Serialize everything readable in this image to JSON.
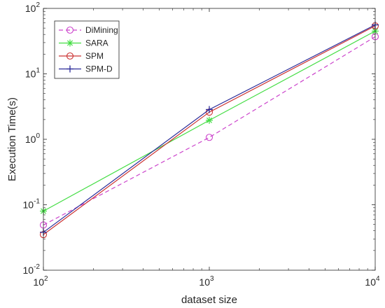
{
  "chart_data": {
    "type": "line",
    "title": "",
    "xlabel": "dataset size",
    "ylabel": "Execution Time(s)",
    "x_scale": "log",
    "y_scale": "log",
    "xlim": [
      100,
      10000
    ],
    "ylim": [
      0.01,
      100
    ],
    "x_ticks": [
      {
        "value": 100,
        "base": "10",
        "exp": "2"
      },
      {
        "value": 1000,
        "base": "10",
        "exp": "3"
      },
      {
        "value": 10000,
        "base": "10",
        "exp": "4"
      }
    ],
    "y_ticks": [
      {
        "value": 0.01,
        "base": "10",
        "exp": "-2"
      },
      {
        "value": 0.1,
        "base": "10",
        "exp": "-1"
      },
      {
        "value": 1,
        "base": "10",
        "exp": "0"
      },
      {
        "value": 10,
        "base": "10",
        "exp": "1"
      },
      {
        "value": 100,
        "base": "10",
        "exp": "2"
      }
    ],
    "x": [
      100,
      1000,
      10000
    ],
    "legend_position": "top-left",
    "series": [
      {
        "name": "DiMining",
        "values": [
          0.049,
          1.07,
          37
        ],
        "color": "#cc44cc",
        "marker": "circle",
        "dash": "dashed"
      },
      {
        "name": "SARA",
        "values": [
          0.08,
          1.95,
          45
        ],
        "color": "#44dd44",
        "marker": "asterisk",
        "dash": "solid"
      },
      {
        "name": "SPM",
        "values": [
          0.035,
          2.6,
          54
        ],
        "color": "#cc3333",
        "marker": "circle",
        "dash": "solid"
      },
      {
        "name": "SPM-D",
        "values": [
          0.038,
          2.85,
          56
        ],
        "color": "#2b2b99",
        "marker": "plus",
        "dash": "solid"
      }
    ]
  }
}
